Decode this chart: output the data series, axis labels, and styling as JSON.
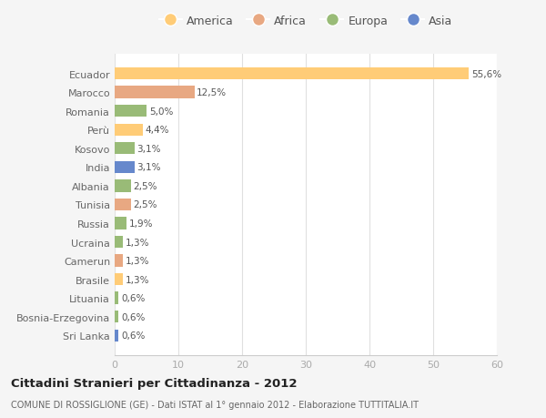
{
  "categories": [
    "Ecuador",
    "Marocco",
    "Romania",
    "Perù",
    "Kosovo",
    "India",
    "Albania",
    "Tunisia",
    "Russia",
    "Ucraina",
    "Camerun",
    "Brasile",
    "Lituania",
    "Bosnia-Erzegovina",
    "Sri Lanka"
  ],
  "values": [
    55.6,
    12.5,
    5.0,
    4.4,
    3.1,
    3.1,
    2.5,
    2.5,
    1.9,
    1.3,
    1.3,
    1.3,
    0.6,
    0.6,
    0.6
  ],
  "labels": [
    "55,6%",
    "12,5%",
    "5,0%",
    "4,4%",
    "3,1%",
    "3,1%",
    "2,5%",
    "2,5%",
    "1,9%",
    "1,3%",
    "1,3%",
    "1,3%",
    "0,6%",
    "0,6%",
    "0,6%"
  ],
  "colors": [
    "#FFCC77",
    "#E8A882",
    "#99BB77",
    "#FFCC77",
    "#99BB77",
    "#6688CC",
    "#99BB77",
    "#E8A882",
    "#99BB77",
    "#99BB77",
    "#E8A882",
    "#FFCC77",
    "#99BB77",
    "#99BB77",
    "#6688CC"
  ],
  "legend_labels": [
    "America",
    "Africa",
    "Europa",
    "Asia"
  ],
  "legend_colors": [
    "#FFCC77",
    "#E8A882",
    "#99BB77",
    "#6688CC"
  ],
  "title": "Cittadini Stranieri per Cittadinanza - 2012",
  "subtitle": "COMUNE DI ROSSIGLIONE (GE) - Dati ISTAT al 1° gennaio 2012 - Elaborazione TUTTITALIA.IT",
  "xlim": [
    0,
    60
  ],
  "background_color": "#f5f5f5",
  "plot_bg_color": "#ffffff"
}
